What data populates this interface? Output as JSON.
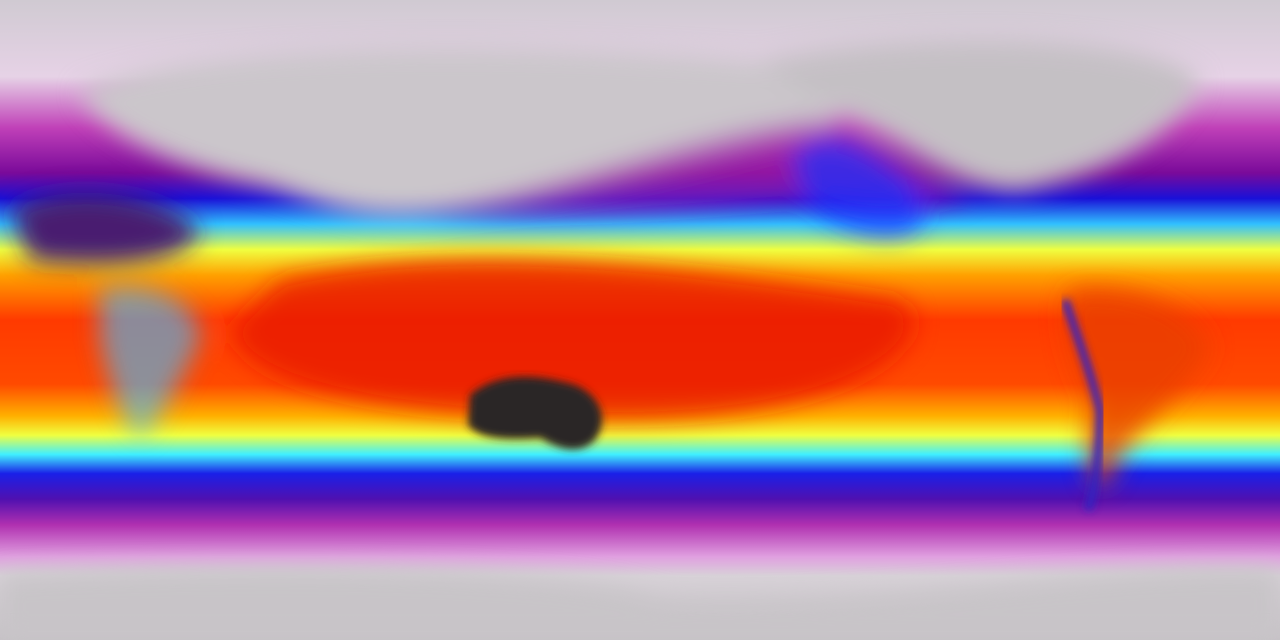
{
  "map": {
    "projection": "equirectangular",
    "view": "global",
    "colormap": [
      "#d8d4d8",
      "#f2d2ee",
      "#c040b8",
      "#8a0a9a",
      "#1a10d8",
      "#1a60ff",
      "#40f0ff",
      "#ffff30",
      "#ffa000",
      "#ff3000",
      "#e81000"
    ],
    "colors": {
      "polar": "#cfcacf",
      "land_north": "#c8c4c8",
      "australia": "#2a2626",
      "sahara": "#4a1a70",
      "tropics": "#ff3a00"
    }
  }
}
